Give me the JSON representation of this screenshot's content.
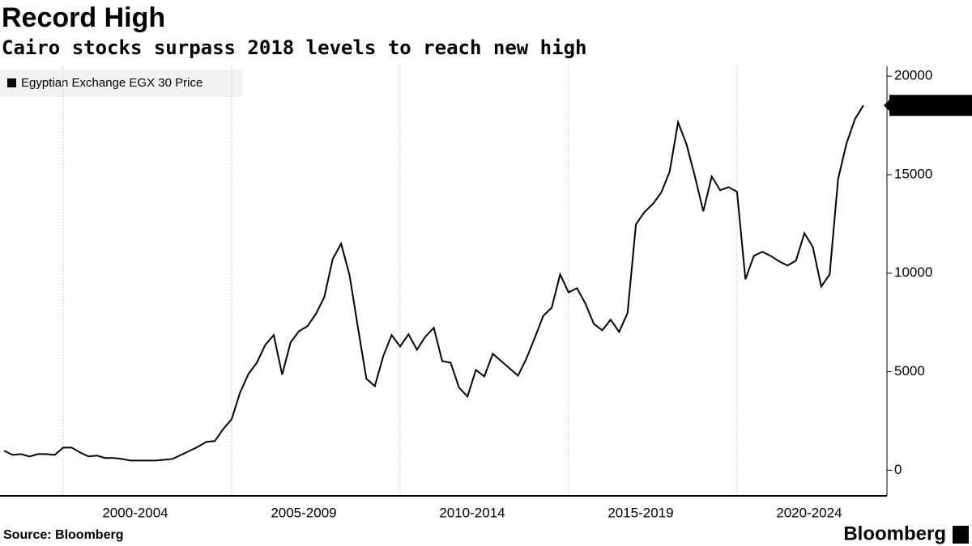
{
  "chart_data": {
    "type": "line",
    "title": "Record High",
    "subtitle": "Cairo stocks surpass 2018 levels to reach new high",
    "source": "Source: Bloomberg",
    "brand": "Bloomberg",
    "x": [
      1998.25,
      1998.5,
      1998.75,
      1999,
      1999.25,
      1999.5,
      1999.75,
      2000,
      2000.25,
      2000.5,
      2000.75,
      2001,
      2001.25,
      2001.5,
      2001.75,
      2002,
      2002.25,
      2002.5,
      2002.75,
      2003,
      2003.25,
      2003.5,
      2003.75,
      2004,
      2004.25,
      2004.5,
      2004.75,
      2005,
      2005.25,
      2005.5,
      2005.75,
      2006,
      2006.25,
      2006.5,
      2006.75,
      2007,
      2007.25,
      2007.5,
      2007.75,
      2008,
      2008.25,
      2008.5,
      2008.75,
      2009,
      2009.25,
      2009.5,
      2009.75,
      2010,
      2010.25,
      2010.5,
      2010.75,
      2011,
      2011.25,
      2011.5,
      2011.75,
      2012,
      2012.25,
      2012.5,
      2012.75,
      2013,
      2013.25,
      2013.5,
      2013.75,
      2014,
      2014.25,
      2014.5,
      2014.75,
      2015,
      2015.25,
      2015.5,
      2015.75,
      2016,
      2016.25,
      2016.5,
      2016.75,
      2017,
      2017.25,
      2017.5,
      2017.75,
      2018,
      2018.25,
      2018.5,
      2018.75,
      2019,
      2019.25,
      2019.5,
      2019.75,
      2020,
      2020.25,
      2020.5,
      2020.75,
      2021,
      2021.25,
      2021.5,
      2021.75,
      2022,
      2022.25,
      2022.5,
      2022.75,
      2023,
      2023.25,
      2023.5,
      2023.75
    ],
    "series": [
      {
        "name": "Egyptian Exchange EGX 30 Price",
        "color": "#000000",
        "values": [
          985,
          780,
          820,
          700,
          820,
          820,
          780,
          1150,
          1150,
          900,
          700,
          740,
          620,
          620,
          575,
          490,
          490,
          490,
          490,
          530,
          575,
          780,
          985,
          1190,
          1440,
          1480,
          2090,
          2590,
          3940,
          4890,
          5460,
          6370,
          6860,
          4850,
          6490,
          7060,
          7310,
          7930,
          8790,
          10720,
          11500,
          9900,
          7230,
          4640,
          4270,
          5790,
          6860,
          6280,
          6900,
          6120,
          6780,
          7230,
          5540,
          5460,
          4190,
          3740,
          5090,
          4760,
          5910,
          5540,
          5170,
          4800,
          5670,
          6730,
          7840,
          8250,
          9940,
          9030,
          9240,
          8460,
          7430,
          7100,
          7640,
          7020,
          7970,
          12480,
          13100,
          13510,
          14090,
          15150,
          17660,
          16550,
          14910,
          13140,
          14910,
          14210,
          14370,
          14130,
          9690,
          10880,
          11090,
          10880,
          10600,
          10390,
          10640,
          12030,
          11330,
          9320,
          9940,
          14780,
          16590,
          17820,
          18516.59
        ]
      }
    ],
    "xlim": [
      1998.125,
      2024.45
    ],
    "xticks": [
      {
        "value": 2000,
        "label": "2000-2004"
      },
      {
        "value": 2005,
        "label": "2005-2009"
      },
      {
        "value": 2010,
        "label": "2010-2014"
      },
      {
        "value": 2015,
        "label": "2015-2019"
      },
      {
        "value": 2020,
        "label": "2020-2024"
      }
    ],
    "ylim": [
      -1300,
      20500
    ],
    "yticks": [
      0,
      5000,
      10000,
      15000,
      20000
    ],
    "grid": true
  }
}
